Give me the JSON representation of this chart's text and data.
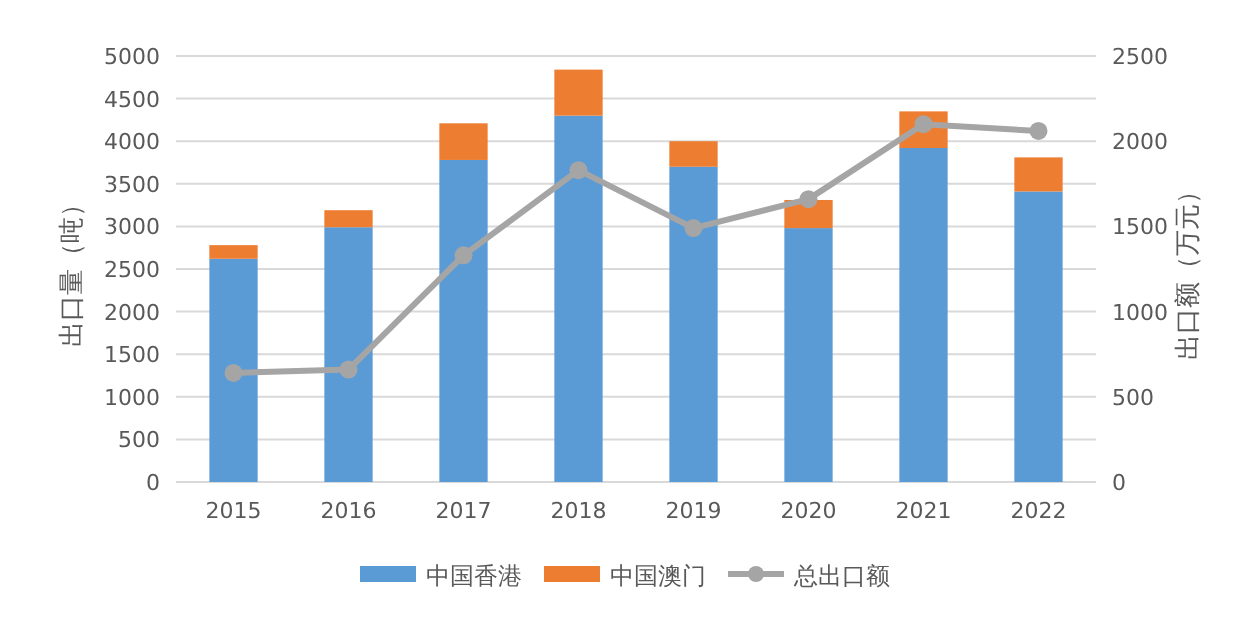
{
  "chart_data": {
    "type": "bar",
    "stacked": true,
    "categories": [
      "2015",
      "2016",
      "2017",
      "2018",
      "2019",
      "2020",
      "2021",
      "2022"
    ],
    "series": [
      {
        "name": "中国香港",
        "color": "#5b9bd5",
        "values": [
          2620,
          2990,
          3780,
          4300,
          3700,
          2980,
          3920,
          3410
        ]
      },
      {
        "name": "中国澳门",
        "color": "#ed7d31",
        "values": [
          160,
          200,
          430,
          540,
          300,
          330,
          430,
          400
        ]
      },
      {
        "name": "总出口额",
        "type": "line",
        "axis": "y2",
        "color": "#a5a5a5",
        "marker": "circle",
        "line_style": "solid",
        "values": [
          640,
          660,
          1330,
          1830,
          1490,
          1660,
          2100,
          2060
        ]
      }
    ],
    "ylabel": "出口量（吨）",
    "y2label": "出口额（万元）",
    "ylim": [
      0,
      5000
    ],
    "yticks": [
      0,
      500,
      1000,
      1500,
      2000,
      2500,
      3000,
      3500,
      4000,
      4500,
      5000
    ],
    "y2lim": [
      0,
      2500
    ],
    "y2ticks": [
      0,
      500,
      1000,
      1500,
      2000,
      2500
    ],
    "grid": "y",
    "legend": "bottom"
  }
}
